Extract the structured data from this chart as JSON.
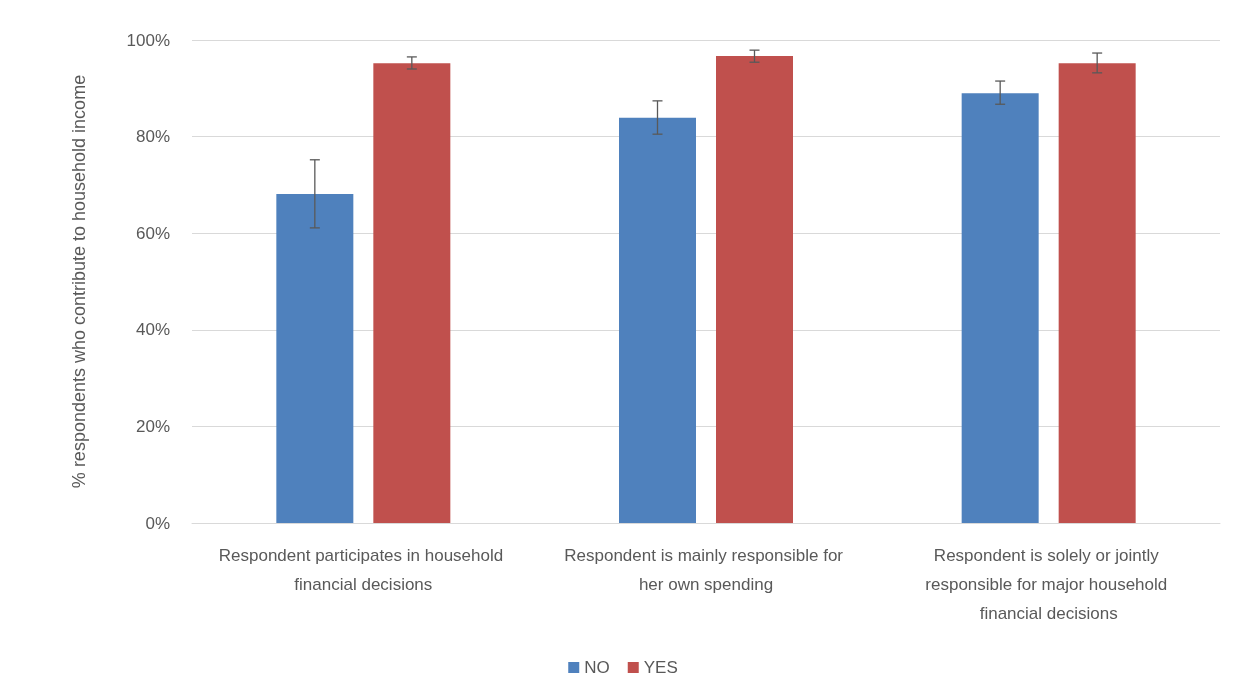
{
  "chart_data": {
    "type": "bar",
    "ylabel": "% respondents who contribute to household income",
    "categories": [
      "Respondent participates in household financial decisions",
      "Respondent is mainly responsible for her own spending",
      "Respondent is solely or jointly responsible for major household financial decisions"
    ],
    "series": [
      {
        "name": "NO",
        "color": "#4f81bd",
        "values": [
          68.1,
          83.9,
          89.0
        ],
        "errors": [
          [
            61.1,
            75.2
          ],
          [
            80.5,
            87.4
          ],
          [
            86.7,
            91.5
          ]
        ]
      },
      {
        "name": "YES",
        "color": "#c0504d",
        "values": [
          95.2,
          96.7,
          95.2
        ],
        "errors": [
          [
            94.0,
            96.5
          ],
          [
            95.4,
            97.9
          ],
          [
            93.2,
            97.3
          ]
        ]
      }
    ],
    "ylim": [
      0,
      100
    ],
    "yticks": [
      {
        "value": 0,
        "label": "0%"
      },
      {
        "value": 20,
        "label": "20%"
      },
      {
        "value": 40,
        "label": "40%"
      },
      {
        "value": 60,
        "label": "60%"
      },
      {
        "value": 80,
        "label": "80%"
      },
      {
        "value": 100,
        "label": "100%"
      }
    ],
    "grid": "y",
    "legend": "bottom"
  }
}
